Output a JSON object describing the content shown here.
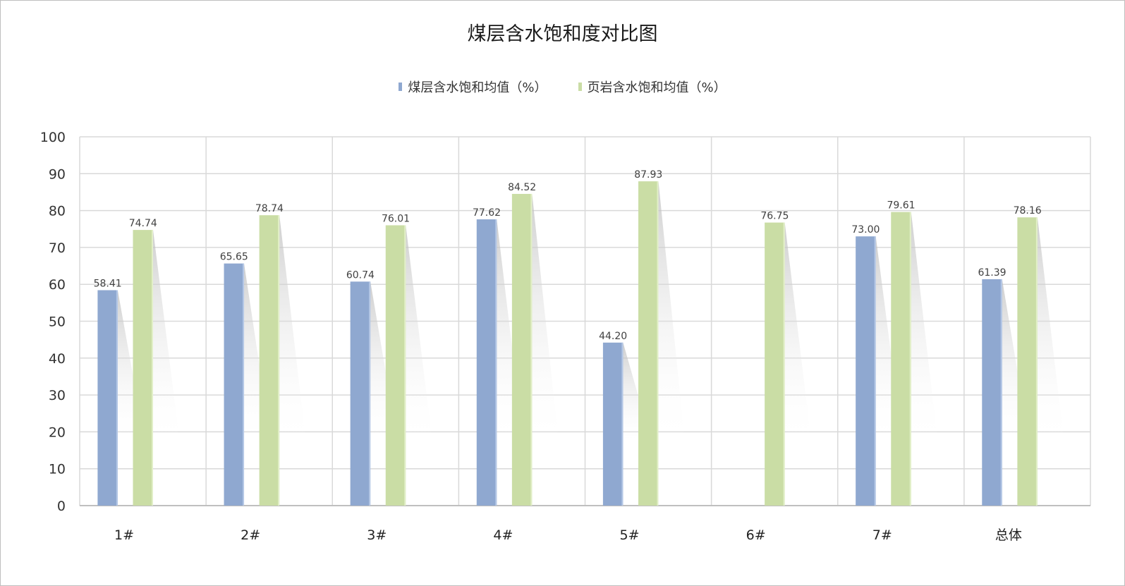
{
  "chart_data": {
    "type": "bar",
    "title": "煤层含水饱和度对比图",
    "categories": [
      "1#",
      "2#",
      "3#",
      "4#",
      "5#",
      "6#",
      "7#",
      "总体"
    ],
    "series": [
      {
        "name": "煤层含水饱和均值（%）",
        "color": "#8fa8d0",
        "values": [
          58.41,
          65.65,
          60.74,
          77.62,
          44.2,
          null,
          73.0,
          61.39
        ]
      },
      {
        "name": "页岩含水饱和均值（%）",
        "color": "#cadda5",
        "values": [
          74.74,
          78.74,
          76.01,
          84.52,
          87.93,
          76.75,
          79.61,
          78.16
        ]
      }
    ],
    "xlabel": "",
    "ylabel": "",
    "ylim": [
      0,
      100
    ],
    "yticks": [
      0,
      10,
      20,
      30,
      40,
      50,
      60,
      70,
      80,
      90,
      100
    ],
    "grid": true,
    "legend_position": "top"
  }
}
